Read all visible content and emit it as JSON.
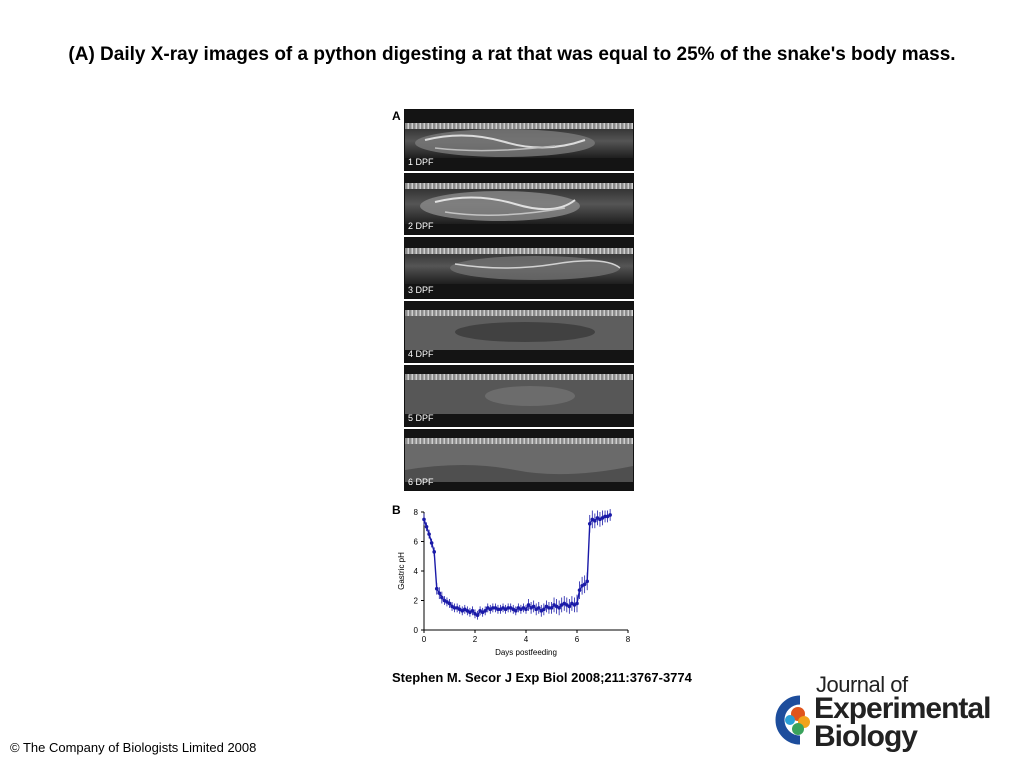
{
  "slide": {
    "title": "(A) Daily X-ray images of a python digesting a rat that was equal to 25% of the snake's body mass."
  },
  "panel_a": {
    "letter": "A",
    "images": [
      {
        "label": "1 DPF"
      },
      {
        "label": "2 DPF"
      },
      {
        "label": "3 DPF"
      },
      {
        "label": "4 DPF"
      },
      {
        "label": "5 DPF"
      },
      {
        "label": "6 DPF"
      }
    ]
  },
  "chart_data": {
    "panel_letter": "B",
    "type": "line",
    "xlabel": "Days postfeeding",
    "ylabel": "Gastric pH",
    "xlim": [
      0,
      8
    ],
    "ylim": [
      0,
      8
    ],
    "xticks": [
      0,
      2,
      4,
      6,
      8
    ],
    "yticks": [
      0,
      2,
      4,
      6,
      8
    ],
    "color": "#1a1aa8",
    "series": [
      {
        "x": [
          0,
          0.1,
          0.2,
          0.3,
          0.4,
          0.5,
          0.6,
          0.7,
          0.8,
          0.9,
          1.0,
          1.1,
          1.2,
          1.3,
          1.4,
          1.5,
          1.6,
          1.7,
          1.8,
          1.9,
          2.0,
          2.1,
          2.2,
          2.3,
          2.4,
          2.5,
          2.6,
          2.7,
          2.8,
          2.9,
          3.0,
          3.1,
          3.2,
          3.3,
          3.4,
          3.5,
          3.6,
          3.7,
          3.8,
          3.9,
          4.0,
          4.1,
          4.2,
          4.3,
          4.4,
          4.5,
          4.6,
          4.7,
          4.8,
          4.9,
          5.0,
          5.1,
          5.2,
          5.3,
          5.4,
          5.5,
          5.6,
          5.7,
          5.8,
          5.9,
          6.0,
          6.1,
          6.2,
          6.3,
          6.4,
          6.5,
          6.6,
          6.7,
          6.8,
          6.9,
          7.0,
          7.1,
          7.2,
          7.3
        ],
        "y": [
          7.5,
          7.0,
          6.5,
          5.9,
          5.3,
          2.8,
          2.5,
          2.2,
          2.0,
          1.9,
          1.8,
          1.6,
          1.5,
          1.5,
          1.4,
          1.3,
          1.4,
          1.3,
          1.2,
          1.3,
          1.1,
          1.0,
          1.3,
          1.2,
          1.3,
          1.5,
          1.4,
          1.5,
          1.5,
          1.4,
          1.4,
          1.5,
          1.4,
          1.5,
          1.5,
          1.4,
          1.3,
          1.5,
          1.4,
          1.5,
          1.4,
          1.7,
          1.5,
          1.6,
          1.4,
          1.5,
          1.3,
          1.4,
          1.6,
          1.5,
          1.5,
          1.7,
          1.6,
          1.5,
          1.7,
          1.8,
          1.7,
          1.6,
          1.8,
          1.7,
          1.8,
          2.7,
          3.0,
          3.1,
          3.3,
          7.2,
          7.5,
          7.4,
          7.6,
          7.5,
          7.6,
          7.7,
          7.7,
          7.8
        ],
        "err": [
          0.4,
          0.3,
          0.3,
          0.3,
          0.3,
          0.4,
          0.4,
          0.4,
          0.3,
          0.3,
          0.3,
          0.3,
          0.3,
          0.3,
          0.3,
          0.3,
          0.3,
          0.3,
          0.3,
          0.3,
          0.3,
          0.3,
          0.3,
          0.3,
          0.3,
          0.3,
          0.3,
          0.3,
          0.3,
          0.3,
          0.3,
          0.3,
          0.3,
          0.3,
          0.3,
          0.3,
          0.3,
          0.3,
          0.3,
          0.3,
          0.3,
          0.4,
          0.4,
          0.4,
          0.4,
          0.4,
          0.4,
          0.4,
          0.4,
          0.4,
          0.4,
          0.5,
          0.5,
          0.5,
          0.5,
          0.5,
          0.5,
          0.5,
          0.5,
          0.5,
          0.6,
          0.6,
          0.6,
          0.6,
          0.6,
          0.6,
          0.6,
          0.5,
          0.5,
          0.5,
          0.5,
          0.4,
          0.4,
          0.4
        ]
      }
    ]
  },
  "citation": "Stephen M. Secor J Exp Biol 2008;211:3767-3774",
  "copyright": "© The Company of Biologists Limited 2008",
  "logo": {
    "line1": "Journal of",
    "line2": "Experimental",
    "line3": "Biology"
  }
}
